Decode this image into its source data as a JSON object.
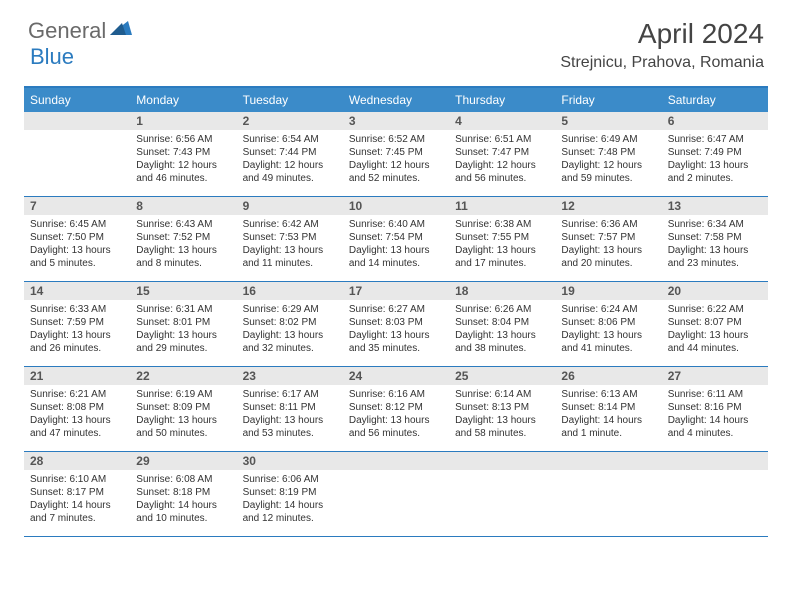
{
  "logo": {
    "text1": "General",
    "text2": "Blue"
  },
  "title": "April 2024",
  "subtitle": "Strejnicu, Prahova, Romania",
  "colors": {
    "header_bg": "#3b8bc9",
    "border": "#2b7bbf",
    "daynum_bg": "#e8e8e8",
    "logo_gray": "#6a6a6a",
    "logo_blue": "#2b7bbf"
  },
  "days_of_week": [
    "Sunday",
    "Monday",
    "Tuesday",
    "Wednesday",
    "Thursday",
    "Friday",
    "Saturday"
  ],
  "weeks": [
    [
      {
        "n": "",
        "sunrise": "",
        "sunset": "",
        "daylight": ""
      },
      {
        "n": "1",
        "sunrise": "Sunrise: 6:56 AM",
        "sunset": "Sunset: 7:43 PM",
        "daylight": "Daylight: 12 hours and 46 minutes."
      },
      {
        "n": "2",
        "sunrise": "Sunrise: 6:54 AM",
        "sunset": "Sunset: 7:44 PM",
        "daylight": "Daylight: 12 hours and 49 minutes."
      },
      {
        "n": "3",
        "sunrise": "Sunrise: 6:52 AM",
        "sunset": "Sunset: 7:45 PM",
        "daylight": "Daylight: 12 hours and 52 minutes."
      },
      {
        "n": "4",
        "sunrise": "Sunrise: 6:51 AM",
        "sunset": "Sunset: 7:47 PM",
        "daylight": "Daylight: 12 hours and 56 minutes."
      },
      {
        "n": "5",
        "sunrise": "Sunrise: 6:49 AM",
        "sunset": "Sunset: 7:48 PM",
        "daylight": "Daylight: 12 hours and 59 minutes."
      },
      {
        "n": "6",
        "sunrise": "Sunrise: 6:47 AM",
        "sunset": "Sunset: 7:49 PM",
        "daylight": "Daylight: 13 hours and 2 minutes."
      }
    ],
    [
      {
        "n": "7",
        "sunrise": "Sunrise: 6:45 AM",
        "sunset": "Sunset: 7:50 PM",
        "daylight": "Daylight: 13 hours and 5 minutes."
      },
      {
        "n": "8",
        "sunrise": "Sunrise: 6:43 AM",
        "sunset": "Sunset: 7:52 PM",
        "daylight": "Daylight: 13 hours and 8 minutes."
      },
      {
        "n": "9",
        "sunrise": "Sunrise: 6:42 AM",
        "sunset": "Sunset: 7:53 PM",
        "daylight": "Daylight: 13 hours and 11 minutes."
      },
      {
        "n": "10",
        "sunrise": "Sunrise: 6:40 AM",
        "sunset": "Sunset: 7:54 PM",
        "daylight": "Daylight: 13 hours and 14 minutes."
      },
      {
        "n": "11",
        "sunrise": "Sunrise: 6:38 AM",
        "sunset": "Sunset: 7:55 PM",
        "daylight": "Daylight: 13 hours and 17 minutes."
      },
      {
        "n": "12",
        "sunrise": "Sunrise: 6:36 AM",
        "sunset": "Sunset: 7:57 PM",
        "daylight": "Daylight: 13 hours and 20 minutes."
      },
      {
        "n": "13",
        "sunrise": "Sunrise: 6:34 AM",
        "sunset": "Sunset: 7:58 PM",
        "daylight": "Daylight: 13 hours and 23 minutes."
      }
    ],
    [
      {
        "n": "14",
        "sunrise": "Sunrise: 6:33 AM",
        "sunset": "Sunset: 7:59 PM",
        "daylight": "Daylight: 13 hours and 26 minutes."
      },
      {
        "n": "15",
        "sunrise": "Sunrise: 6:31 AM",
        "sunset": "Sunset: 8:01 PM",
        "daylight": "Daylight: 13 hours and 29 minutes."
      },
      {
        "n": "16",
        "sunrise": "Sunrise: 6:29 AM",
        "sunset": "Sunset: 8:02 PM",
        "daylight": "Daylight: 13 hours and 32 minutes."
      },
      {
        "n": "17",
        "sunrise": "Sunrise: 6:27 AM",
        "sunset": "Sunset: 8:03 PM",
        "daylight": "Daylight: 13 hours and 35 minutes."
      },
      {
        "n": "18",
        "sunrise": "Sunrise: 6:26 AM",
        "sunset": "Sunset: 8:04 PM",
        "daylight": "Daylight: 13 hours and 38 minutes."
      },
      {
        "n": "19",
        "sunrise": "Sunrise: 6:24 AM",
        "sunset": "Sunset: 8:06 PM",
        "daylight": "Daylight: 13 hours and 41 minutes."
      },
      {
        "n": "20",
        "sunrise": "Sunrise: 6:22 AM",
        "sunset": "Sunset: 8:07 PM",
        "daylight": "Daylight: 13 hours and 44 minutes."
      }
    ],
    [
      {
        "n": "21",
        "sunrise": "Sunrise: 6:21 AM",
        "sunset": "Sunset: 8:08 PM",
        "daylight": "Daylight: 13 hours and 47 minutes."
      },
      {
        "n": "22",
        "sunrise": "Sunrise: 6:19 AM",
        "sunset": "Sunset: 8:09 PM",
        "daylight": "Daylight: 13 hours and 50 minutes."
      },
      {
        "n": "23",
        "sunrise": "Sunrise: 6:17 AM",
        "sunset": "Sunset: 8:11 PM",
        "daylight": "Daylight: 13 hours and 53 minutes."
      },
      {
        "n": "24",
        "sunrise": "Sunrise: 6:16 AM",
        "sunset": "Sunset: 8:12 PM",
        "daylight": "Daylight: 13 hours and 56 minutes."
      },
      {
        "n": "25",
        "sunrise": "Sunrise: 6:14 AM",
        "sunset": "Sunset: 8:13 PM",
        "daylight": "Daylight: 13 hours and 58 minutes."
      },
      {
        "n": "26",
        "sunrise": "Sunrise: 6:13 AM",
        "sunset": "Sunset: 8:14 PM",
        "daylight": "Daylight: 14 hours and 1 minute."
      },
      {
        "n": "27",
        "sunrise": "Sunrise: 6:11 AM",
        "sunset": "Sunset: 8:16 PM",
        "daylight": "Daylight: 14 hours and 4 minutes."
      }
    ],
    [
      {
        "n": "28",
        "sunrise": "Sunrise: 6:10 AM",
        "sunset": "Sunset: 8:17 PM",
        "daylight": "Daylight: 14 hours and 7 minutes."
      },
      {
        "n": "29",
        "sunrise": "Sunrise: 6:08 AM",
        "sunset": "Sunset: 8:18 PM",
        "daylight": "Daylight: 14 hours and 10 minutes."
      },
      {
        "n": "30",
        "sunrise": "Sunrise: 6:06 AM",
        "sunset": "Sunset: 8:19 PM",
        "daylight": "Daylight: 14 hours and 12 minutes."
      },
      {
        "n": "",
        "sunrise": "",
        "sunset": "",
        "daylight": ""
      },
      {
        "n": "",
        "sunrise": "",
        "sunset": "",
        "daylight": ""
      },
      {
        "n": "",
        "sunrise": "",
        "sunset": "",
        "daylight": ""
      },
      {
        "n": "",
        "sunrise": "",
        "sunset": "",
        "daylight": ""
      }
    ]
  ]
}
